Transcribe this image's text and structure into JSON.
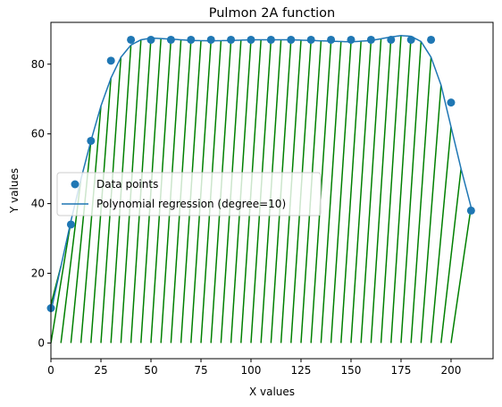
{
  "chart_data": {
    "type": "scatter",
    "title": "Pulmon 2A function",
    "xlabel": "X values",
    "ylabel": "Y values",
    "xlim": [
      0,
      221
    ],
    "ylim": [
      -4.5,
      92
    ],
    "xticks": [
      0,
      25,
      50,
      75,
      100,
      125,
      150,
      175,
      200
    ],
    "yticks": [
      0,
      20,
      40,
      60,
      80
    ],
    "grid": false,
    "legend_position": "center-left",
    "series": [
      {
        "name": "Data points",
        "kind": "scatter",
        "color": "#1f77b4",
        "x": [
          0,
          10,
          20,
          30,
          40,
          50,
          60,
          70,
          80,
          90,
          100,
          110,
          120,
          130,
          140,
          150,
          160,
          170,
          180,
          190,
          200,
          210
        ],
        "y": [
          10,
          34,
          58,
          81,
          87,
          87,
          87,
          87,
          87,
          87,
          87,
          87,
          87,
          87,
          87,
          87,
          87,
          87,
          87,
          87,
          69,
          38
        ]
      },
      {
        "name": "Polynomial regression (degree=10)",
        "kind": "line",
        "color": "#1f77b4",
        "x": [
          0,
          5,
          10,
          15,
          20,
          25,
          30,
          35,
          40,
          45,
          50,
          60,
          70,
          80,
          90,
          100,
          110,
          120,
          130,
          140,
          150,
          160,
          170,
          175,
          180,
          185,
          190,
          195,
          200,
          205,
          210
        ],
        "y": [
          9,
          22,
          35,
          47,
          58,
          68,
          76,
          82,
          85.5,
          87,
          87.5,
          87.2,
          86.8,
          86.7,
          86.8,
          87.0,
          87.0,
          87.0,
          86.8,
          86.6,
          86.4,
          86.8,
          87.8,
          88.2,
          88.0,
          86.5,
          82,
          74,
          62,
          50,
          39
        ]
      },
      {
        "kind": "fill-hatch",
        "color": "#008000",
        "spacing_x": 5,
        "top_offset_x": 10,
        "baseline_y": 0
      }
    ]
  }
}
